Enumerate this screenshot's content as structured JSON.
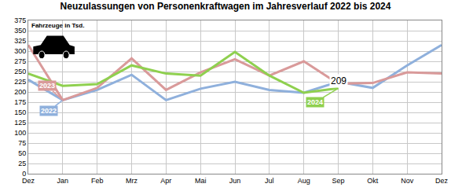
{
  "chart_data": {
    "type": "line",
    "title": "Neuzulassungen von Personenkraftwagen im Jahresverlauf 2022 bis 2024",
    "y_label": "Fahrzeuge in Tsd.",
    "categories": [
      "Dez",
      "Jan",
      "Feb",
      "Mrz",
      "Apr",
      "Mai",
      "Jun",
      "Jul",
      "Aug",
      "Sep",
      "Okt",
      "Nov",
      "Dez"
    ],
    "series": [
      {
        "name": "2022",
        "color": "#8fb0dc",
        "values": [
          230,
          180,
          205,
          242,
          180,
          208,
          225,
          205,
          198,
          225,
          210,
          265,
          315
        ]
      },
      {
        "name": "2023",
        "color": "#d99a9a",
        "values": [
          315,
          180,
          210,
          282,
          205,
          248,
          280,
          240,
          275,
          220,
          222,
          248,
          245
        ]
      },
      {
        "name": "2024",
        "color": "#8fd04f",
        "values": [
          245,
          215,
          219,
          265,
          245,
          240,
          298,
          240,
          198,
          209,
          null,
          null,
          null
        ],
        "value_labels": [
          null,
          null,
          null,
          null,
          null,
          null,
          null,
          null,
          null,
          "209",
          null,
          null,
          null
        ]
      }
    ],
    "ylim": [
      0,
      375
    ],
    "yticks": [
      0,
      25,
      50,
      75,
      100,
      125,
      150,
      175,
      200,
      225,
      250,
      275,
      300,
      325,
      350,
      375
    ],
    "grid": true
  }
}
